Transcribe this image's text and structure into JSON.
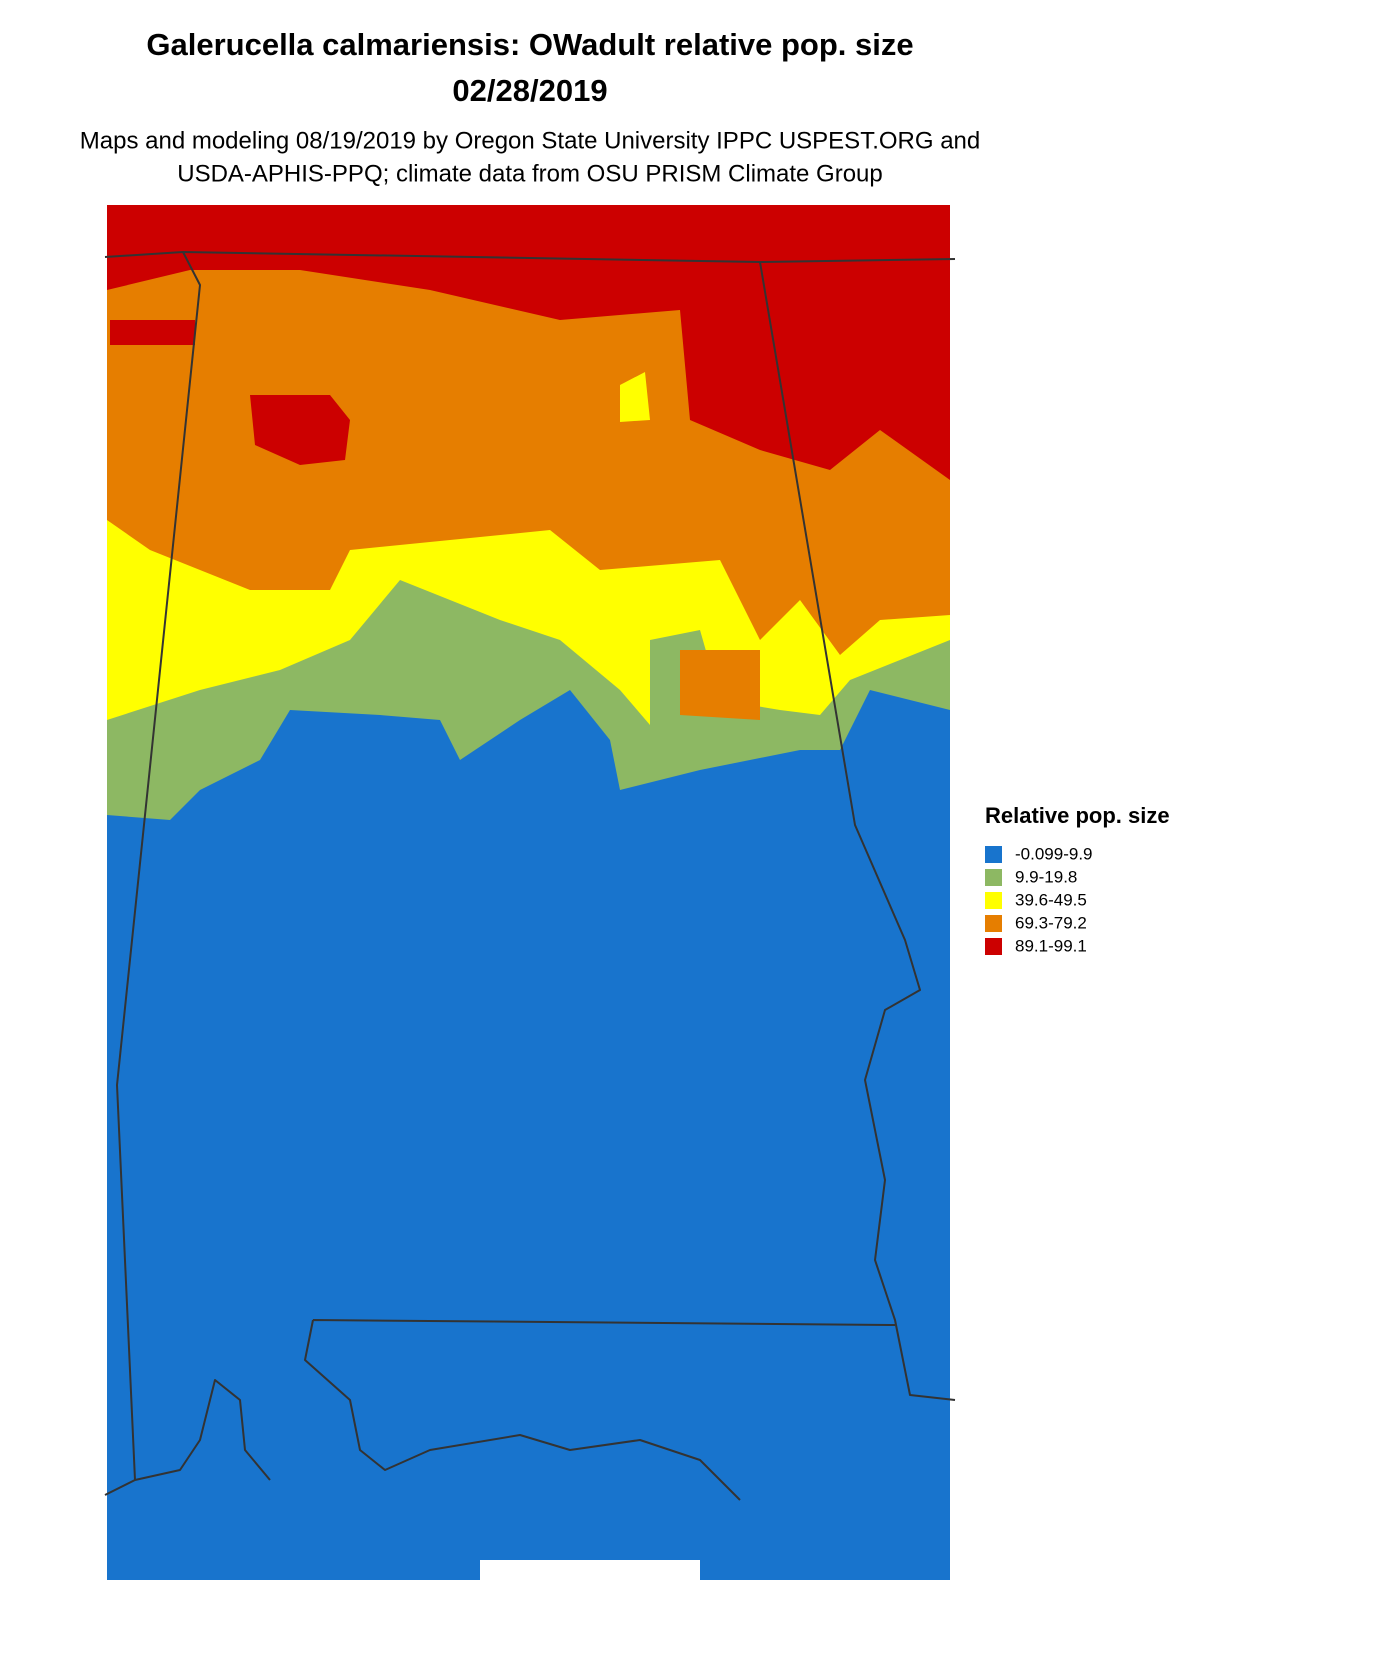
{
  "header": {
    "title_lines": [
      "Galerucella calmariensis: OWadult relative pop. size",
      "02/28/2019"
    ],
    "subtitle_lines": [
      "Maps and modeling 08/19/2019 by Oregon State University IPPC USPEST.ORG and",
      "USDA-APHIS-PPQ; climate data from OSU PRISM Climate Group"
    ]
  },
  "legend": {
    "title": "Relative pop. size",
    "items": [
      {
        "label": "-0.099-9.9",
        "color": "#1874cd"
      },
      {
        "label": "9.9-19.8",
        "color": "#8db863"
      },
      {
        "label": "39.6-49.5",
        "color": "#ffff00"
      },
      {
        "label": "69.3-79.2",
        "color": "#e67e00"
      },
      {
        "label": "89.1-99.1",
        "color": "#cc0000"
      }
    ]
  }
}
